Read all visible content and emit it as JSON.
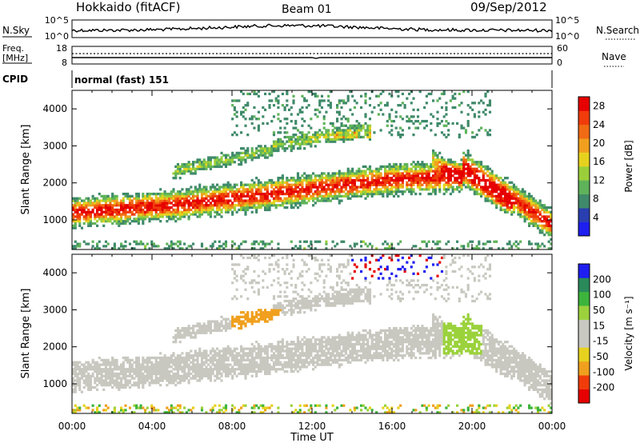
{
  "header": {
    "station": "Hokkaido (fitACF)",
    "beam": "Beam 01",
    "date": "09/Sep/2012"
  },
  "noise_panel": {
    "left_label": "N.Sky",
    "right_label": "N.Search",
    "left_ticks": [
      "10^5",
      "10^0"
    ],
    "right_ticks": [
      "10^5",
      "10^0"
    ]
  },
  "freq_panel": {
    "left_label_line1": "Freq.",
    "left_label_line2": "[MHz]",
    "left_ticks": [
      "18",
      "8"
    ],
    "right_label": "Nave",
    "right_ticks": [
      "60",
      "0"
    ]
  },
  "cpid": {
    "label": "CPID",
    "value": "normal (fast) 151"
  },
  "colors": {
    "power_scale": [
      "#1e1ef0",
      "#2a3fb0",
      "#3f8a6a",
      "#5fb35a",
      "#9bcf3a",
      "#e6d21e",
      "#f0a01e",
      "#f06a14",
      "#f03c0a",
      "#e60000"
    ],
    "velocity_scale": [
      "#e60000",
      "#f03c0a",
      "#f0a01e",
      "#e6d21e",
      "#c8c8c0",
      "#c8c8c0",
      "#9bd23c",
      "#3cb43c",
      "#2a8a5a",
      "#1e1ef0"
    ]
  },
  "chart_data": [
    {
      "type": "heatmap",
      "name": "power",
      "ylabel": "Slant Range [km]",
      "y_ticks": [
        1000,
        2000,
        3000,
        4000
      ],
      "ylim": [
        200,
        4500
      ],
      "x_ticks": [
        "00:00",
        "04:00",
        "08:00",
        "12:00",
        "16:00",
        "20:00",
        "00:00"
      ],
      "xlim_hours": [
        0,
        24
      ],
      "colorbar": {
        "label": "Power [dB]",
        "ticks": [
          4,
          8,
          12,
          16,
          20,
          24,
          28
        ],
        "range": [
          0,
          30
        ]
      }
    },
    {
      "type": "heatmap",
      "name": "velocity",
      "ylabel": "Slant Range [km]",
      "y_ticks": [
        1000,
        2000,
        3000,
        4000
      ],
      "ylim": [
        200,
        4500
      ],
      "x_ticks": [
        "00:00",
        "04:00",
        "08:00",
        "12:00",
        "16:00",
        "20:00",
        "00:00"
      ],
      "xlim_hours": [
        0,
        24
      ],
      "xlabel": "Time UT",
      "colorbar": {
        "label": "Velocity [m s⁻¹]",
        "ticks": [
          -200,
          -100,
          -50,
          -15,
          15,
          50,
          100,
          200
        ]
      }
    }
  ]
}
